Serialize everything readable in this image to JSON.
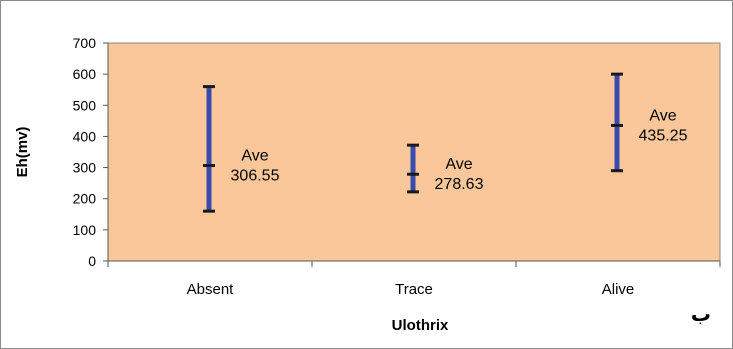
{
  "chart_data": {
    "type": "range",
    "xlabel": "Ulothrix",
    "ylabel": "Eh(mv)",
    "ylim": [
      0,
      700
    ],
    "yticks": [
      0,
      100,
      200,
      300,
      400,
      500,
      600,
      700
    ],
    "categories": [
      "Absent",
      "Trace",
      "Alive"
    ],
    "min": [
      160,
      222,
      290
    ],
    "max": [
      560,
      372,
      600
    ],
    "average": [
      306.55,
      278.63,
      435.25
    ],
    "annotations": [
      {
        "line1": "Ave",
        "line2": "306.55"
      },
      {
        "line1": "Ave",
        "line2": "278.63"
      },
      {
        "line1": "Ave",
        "line2": "435.25"
      }
    ],
    "colors": {
      "plot_bg": "#F9C79A",
      "bar": "#3A4BB0",
      "tick": "#1a1a1a"
    }
  },
  "corner_label": "ب"
}
